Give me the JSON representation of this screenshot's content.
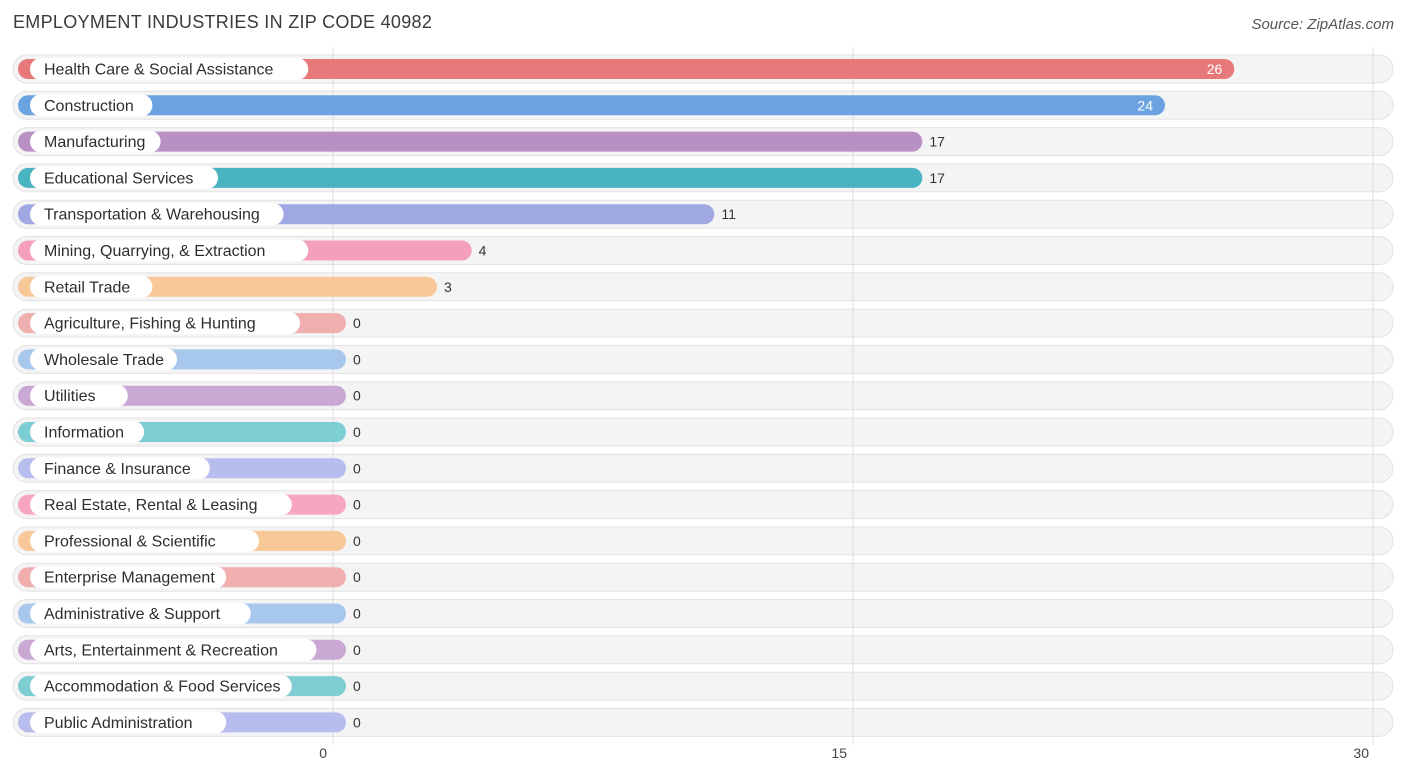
{
  "header": {
    "title": "EMPLOYMENT INDUSTRIES IN ZIP CODE 40982",
    "source": "Source: ZipAtlas.com"
  },
  "chart_data": {
    "type": "bar",
    "orientation": "horizontal",
    "title": "EMPLOYMENT INDUSTRIES IN ZIP CODE 40982",
    "xlabel": "",
    "ylabel": "",
    "xlim": [
      0,
      30
    ],
    "xticks": [
      0,
      15,
      30
    ],
    "grid": true,
    "categories": [
      "Health Care & Social Assistance",
      "Construction",
      "Manufacturing",
      "Educational Services",
      "Transportation & Warehousing",
      "Mining, Quarrying, & Extraction",
      "Retail Trade",
      "Agriculture, Fishing & Hunting",
      "Wholesale Trade",
      "Utilities",
      "Information",
      "Finance & Insurance",
      "Real Estate, Rental & Leasing",
      "Professional & Scientific",
      "Enterprise Management",
      "Administrative & Support",
      "Arts, Entertainment & Recreation",
      "Accommodation & Food Services",
      "Public Administration"
    ],
    "values": [
      26,
      24,
      17,
      17,
      11,
      4,
      3,
      0,
      0,
      0,
      0,
      0,
      0,
      0,
      0,
      0,
      0,
      0,
      0
    ],
    "colors": [
      "#e8797a",
      "#6aa3df",
      "#b990c4",
      "#4ab3c2",
      "#a0a8e4",
      "#f49fbc",
      "#f9c899",
      "#f0aeae",
      "#a8c7ec",
      "#c9a8d4",
      "#7dcdd2",
      "#b8bdf0",
      "#f6a6c2",
      "#f9c899",
      "#f0aeae",
      "#a8c7ec",
      "#c9a8d4",
      "#7dcdd2",
      "#b8bdf0"
    ]
  }
}
